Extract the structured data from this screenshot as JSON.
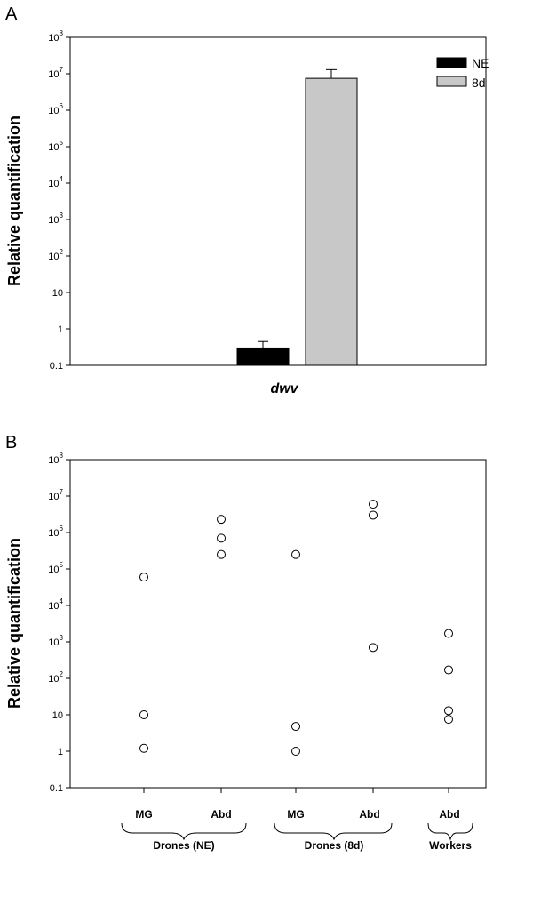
{
  "panels": {
    "a_letter": "A",
    "b_letter": "B"
  },
  "colors": {
    "NE": "#000000",
    "8d": "#c8c8c8",
    "axis": "#000000"
  },
  "chart_data": [
    {
      "id": "A",
      "type": "bar",
      "ylabel": "Relative quantification",
      "yscale": "log",
      "ylim": [
        0.1,
        100000000
      ],
      "yticks": [
        {
          "base": "0.1",
          "exp": ""
        },
        {
          "base": "1",
          "exp": ""
        },
        {
          "base": "10",
          "exp": ""
        },
        {
          "base": "10",
          "exp": "2"
        },
        {
          "base": "10",
          "exp": "3"
        },
        {
          "base": "10",
          "exp": "4"
        },
        {
          "base": "10",
          "exp": "5"
        },
        {
          "base": "10",
          "exp": "6"
        },
        {
          "base": "10",
          "exp": "7"
        },
        {
          "base": "10",
          "exp": "8"
        }
      ],
      "categories": [
        "dwv"
      ],
      "series": [
        {
          "name": "NE",
          "values": [
            0.3
          ],
          "error_upper": [
            0.45
          ]
        },
        {
          "name": "8d",
          "values": [
            7500000
          ],
          "error_upper": [
            13000000
          ]
        }
      ],
      "legend": "top-right",
      "grid": false
    },
    {
      "id": "B",
      "type": "scatter",
      "ylabel": "Relative quantification",
      "yscale": "log",
      "ylim": [
        0.1,
        100000000
      ],
      "yticks": [
        {
          "base": "0.1",
          "exp": ""
        },
        {
          "base": "1",
          "exp": ""
        },
        {
          "base": "10",
          "exp": ""
        },
        {
          "base": "10",
          "exp": "2"
        },
        {
          "base": "10",
          "exp": "3"
        },
        {
          "base": "10",
          "exp": "4"
        },
        {
          "base": "10",
          "exp": "5"
        },
        {
          "base": "10",
          "exp": "6"
        },
        {
          "base": "10",
          "exp": "7"
        },
        {
          "base": "10",
          "exp": "8"
        }
      ],
      "categories": [
        "MG",
        "Abd",
        "MG",
        "Abd",
        "Abd"
      ],
      "groups": [
        {
          "label": "Drones (NE)",
          "categories": [
            0,
            1
          ]
        },
        {
          "label": "Drones (8d)",
          "categories": [
            2,
            3
          ]
        },
        {
          "label": "Workers",
          "categories": [
            4
          ]
        }
      ],
      "points": [
        {
          "category": 0,
          "values": [
            60000,
            10,
            1.2
          ]
        },
        {
          "category": 1,
          "values": [
            2300000,
            700000,
            250000
          ]
        },
        {
          "category": 2,
          "values": [
            250000,
            4.8,
            1
          ]
        },
        {
          "category": 3,
          "values": [
            6000000,
            3000000,
            700
          ]
        },
        {
          "category": 4,
          "values": [
            1700,
            170,
            13,
            7.5
          ]
        }
      ],
      "grid": false
    }
  ]
}
